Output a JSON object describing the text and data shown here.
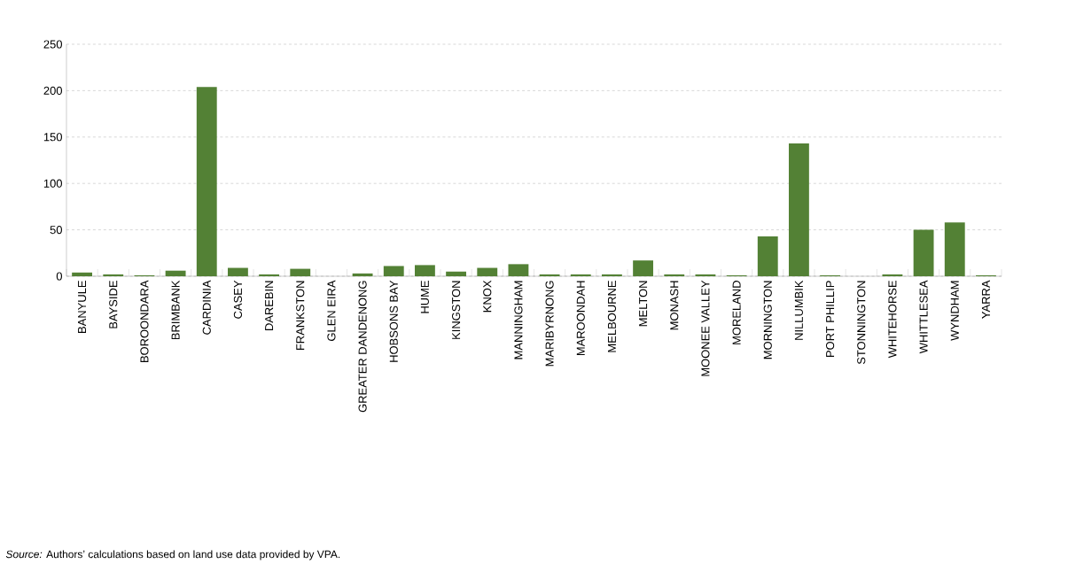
{
  "chart_data": {
    "type": "bar",
    "categories": [
      "BANYULE",
      "BAYSIDE",
      "BOROONDARA",
      "BRIMBANK",
      "CARDINIA",
      "CASEY",
      "DAREBIN",
      "FRANKSTON",
      "GLEN EIRA",
      "GREATER DANDENONG",
      "HOBSONS BAY",
      "HUME",
      "KINGSTON",
      "KNOX",
      "MANNINGHAM",
      "MARIBYRNONG",
      "MAROONDAH",
      "MELBOURNE",
      "MELTON",
      "MONASH",
      "MOONEE VALLEY",
      "MORELAND",
      "MORNINGTON",
      "NILLUMBIK",
      "PORT PHILLIP",
      "STONNINGTON",
      "WHITEHORSE",
      "WHITTLESEA",
      "WYNDHAM",
      "YARRA"
    ],
    "values": [
      4,
      2,
      1,
      6,
      204,
      9,
      2,
      8,
      0,
      3,
      11,
      12,
      5,
      9,
      13,
      2,
      2,
      2,
      17,
      2,
      2,
      1,
      43,
      143,
      1,
      0,
      2,
      50,
      58,
      1
    ],
    "color": "#538135",
    "ylim": [
      0,
      250
    ],
    "yticks": [
      0,
      50,
      100,
      150,
      200,
      250
    ],
    "grid": "y",
    "annotations": [
      "*Source:* Authors’ calculations based on land use data provided by VPA."
    ]
  }
}
